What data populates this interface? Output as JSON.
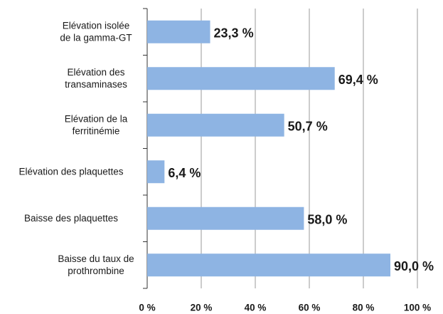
{
  "chart_data": {
    "type": "bar",
    "orientation": "horizontal",
    "categories": [
      [
        "Elévation isolée",
        "de la gamma-GT"
      ],
      [
        "Elévation des",
        "transaminases"
      ],
      [
        "Elévation de la",
        "ferritinémie"
      ],
      [
        "Elévation des plaquettes"
      ],
      [
        "Baisse des plaquettes"
      ],
      [
        "Baisse du taux de",
        "prothrombine"
      ]
    ],
    "values": [
      23.3,
      69.4,
      50.7,
      6.4,
      58.0,
      90.0
    ],
    "value_labels": [
      "23,3 %",
      "69,4 %",
      "50,7 %",
      "6,4 %",
      "58,0 %",
      "90,0 %"
    ],
    "color": "#8eb4e3",
    "xlim": [
      0,
      100
    ],
    "xticks": [
      {
        "value": 0,
        "label": "0 %"
      },
      {
        "value": 20,
        "label": "20 %"
      },
      {
        "value": 40,
        "label": "40 %"
      },
      {
        "value": 60,
        "label": "60 %"
      },
      {
        "value": 80,
        "label": "80 %"
      },
      {
        "value": 100,
        "label": "100 %"
      }
    ],
    "grid": true
  }
}
